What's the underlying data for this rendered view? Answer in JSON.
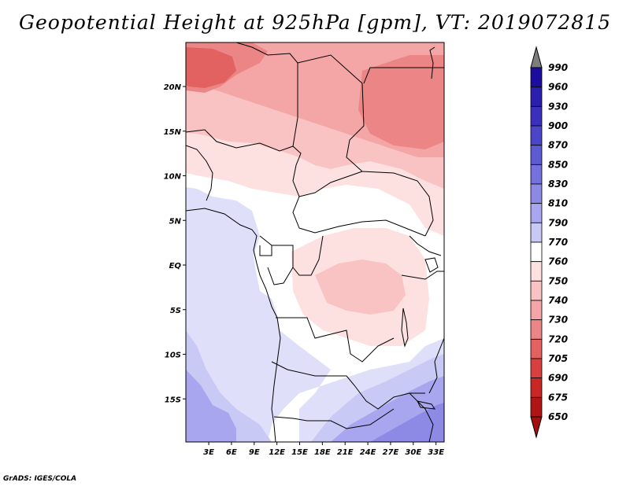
{
  "title": "Geopotential Height at 925hPa [gpm], VT: 2019072815",
  "credit": "GrADS: IGES/COLA",
  "map": {
    "lon_range": [
      0,
      34
    ],
    "lat_range": [
      -20,
      25
    ],
    "lon_ticks": [
      "3E",
      "6E",
      "9E",
      "12E",
      "15E",
      "18E",
      "21E",
      "24E",
      "27E",
      "30E",
      "33E"
    ],
    "lon_tick_values": [
      3,
      6,
      9,
      12,
      15,
      18,
      21,
      24,
      27,
      30,
      33
    ],
    "lat_ticks": [
      "20N",
      "15N",
      "10N",
      "5N",
      "EQ",
      "5S",
      "10S",
      "15S"
    ],
    "lat_tick_values": [
      20,
      15,
      10,
      5,
      0,
      -5,
      -10,
      -15
    ]
  },
  "colorbar": {
    "levels": [
      "990",
      "960",
      "930",
      "900",
      "870",
      "850",
      "830",
      "810",
      "790",
      "770",
      "760",
      "750",
      "740",
      "730",
      "720",
      "705",
      "690",
      "675",
      "650"
    ],
    "colors": [
      "#7d7d7d",
      "#1c0d9e",
      "#2a1fae",
      "#3a30bd",
      "#4b45ca",
      "#5e5ad4",
      "#7470dd",
      "#8c8ae5",
      "#a7a6ee",
      "#c9c9f6",
      "#ffffff",
      "#fde0e0",
      "#f9c3c3",
      "#f4a6a6",
      "#ec8585",
      "#e26262",
      "#d84040",
      "#c92626",
      "#b01414",
      "#a30e0e"
    ]
  },
  "field_colors": {
    "c650": "#a30e0e",
    "c720": "#e26262",
    "c730": "#ec8585",
    "c740": "#f4a6a6",
    "c750": "#f9c3c3",
    "c760": "#fde0e0",
    "c770": "#ffffff",
    "c790": "#dfdff9",
    "c810": "#c9c9f6",
    "c830": "#a7a6ee",
    "c850": "#8c8ae5"
  }
}
